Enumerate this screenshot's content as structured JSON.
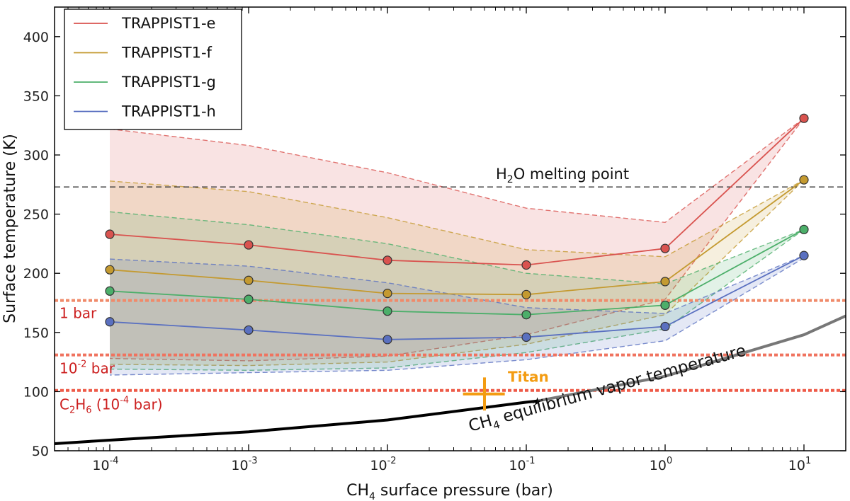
{
  "chart_data": {
    "type": "line",
    "title": "",
    "xlabel_main": "CH",
    "xlabel_sub": "4",
    "xlabel_rest": " surface pressure (bar)",
    "ylabel": "Surface temperature (K)",
    "xscale": "log",
    "xlim": [
      4e-05,
      20
    ],
    "ylim": [
      50,
      425
    ],
    "x_ticks": [
      {
        "value": 0.0001,
        "base": "10",
        "exp": "-4"
      },
      {
        "value": 0.001,
        "base": "10",
        "exp": "-3"
      },
      {
        "value": 0.01,
        "base": "10",
        "exp": "-2"
      },
      {
        "value": 0.1,
        "base": "10",
        "exp": "-1"
      },
      {
        "value": 1,
        "base": "10",
        "exp": "0"
      },
      {
        "value": 10,
        "base": "10",
        "exp": "1"
      }
    ],
    "y_ticks": [
      50,
      100,
      150,
      200,
      250,
      300,
      350,
      400
    ],
    "x": [
      0.0001,
      0.001,
      0.01,
      0.1,
      1,
      10
    ],
    "series": [
      {
        "name": "TRAPPIST1-e",
        "color": "#d9534f",
        "values": [
          233,
          224,
          211,
          207,
          221,
          331
        ],
        "upper": [
          322,
          308,
          285,
          255,
          243,
          331
        ],
        "lower": [
          128,
          126,
          130,
          148,
          178,
          331
        ]
      },
      {
        "name": "TRAPPIST1-f",
        "color": "#c49a30",
        "values": [
          203,
          194,
          183,
          182,
          193,
          279
        ],
        "upper": [
          278,
          269,
          247,
          220,
          214,
          279
        ],
        "lower": [
          123,
          122,
          125,
          140,
          165,
          279
        ]
      },
      {
        "name": "TRAPPIST1-g",
        "color": "#4caf6a",
        "values": [
          185,
          178,
          168,
          165,
          173,
          237
        ],
        "upper": [
          252,
          241,
          225,
          200,
          191,
          237
        ],
        "lower": [
          119,
          118,
          120,
          133,
          153,
          237
        ]
      },
      {
        "name": "TRAPPIST1-h",
        "color": "#5a70c0",
        "values": [
          159,
          152,
          144,
          146,
          155,
          215
        ],
        "upper": [
          212,
          206,
          192,
          171,
          166,
          215
        ],
        "lower": [
          114,
          116,
          118,
          127,
          143,
          213
        ]
      }
    ],
    "legend_position": "top-left",
    "h2o_line": {
      "value": 273,
      "label_main": "H",
      "label_sub": "2",
      "label_rest": "O melting point"
    },
    "hlines": [
      {
        "value": 177,
        "color": "#f08a6a",
        "label": "1 bar"
      },
      {
        "value": 131,
        "color": "#f0735f",
        "label_base": "10",
        "label_exp": "-2",
        "label_rest": " bar"
      },
      {
        "value": 101,
        "color": "#ee5a48",
        "label_main": "C",
        "label_sub1": "2",
        "label_mid": "H",
        "label_sub2": "6",
        "label_rest": " (10",
        "label_exp": "-4",
        "label_end": " bar)"
      }
    ],
    "label_color": "#cc1f1f",
    "titan": {
      "x": 0.05,
      "y": 98,
      "xerr_low": 0.035,
      "xerr_high": 0.07,
      "yerr": 14,
      "label": "Titan",
      "color": "#f39c12"
    },
    "vapor_curve": {
      "label_main": "CH",
      "label_sub": "4",
      "label_rest": " equilibrium vapor temperature",
      "points": [
        [
          4e-05,
          56
        ],
        [
          0.0001,
          59
        ],
        [
          0.001,
          66
        ],
        [
          0.01,
          76
        ],
        [
          0.1,
          91
        ],
        [
          0.12,
          92
        ],
        [
          1,
          113
        ],
        [
          10,
          148
        ],
        [
          20,
          164
        ]
      ],
      "split_x": 0.12
    }
  }
}
